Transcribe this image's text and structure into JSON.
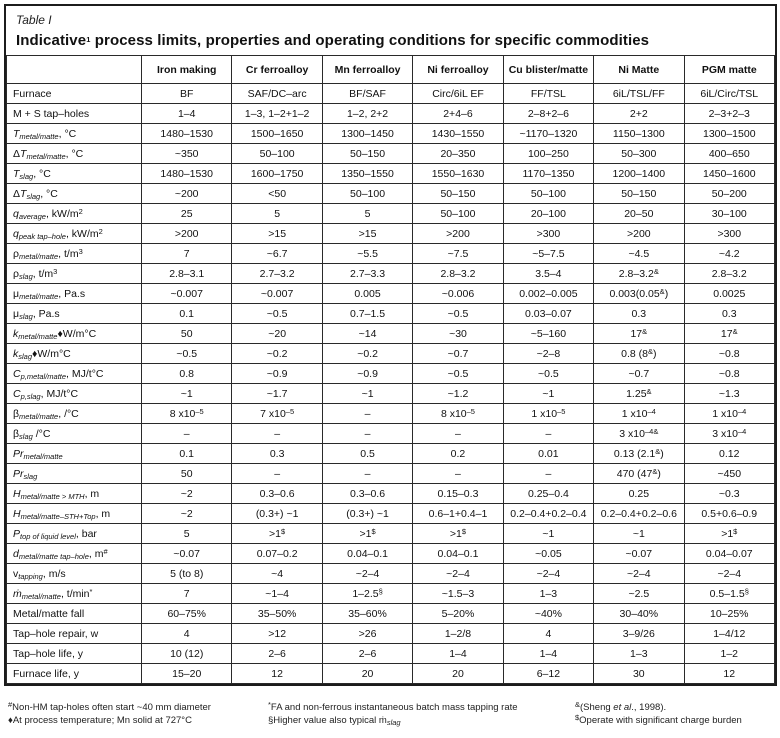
{
  "header": {
    "table_label": "Table I",
    "title_segments": [
      [
        "n",
        "Indicative"
      ],
      [
        "sup",
        "1"
      ],
      [
        "n",
        " process limits, properties and operating conditions for specific commodities"
      ]
    ]
  },
  "accent_colors": {
    "text": "#111111",
    "rule": "#2a2a2a",
    "background": "#ffffff"
  },
  "table": {
    "columns": [
      "",
      "Iron making",
      "Cr ferroalloy",
      "Mn ferroalloy",
      "Ni ferroalloy",
      "Cu blister/matte",
      "Ni Matte",
      "PGM matte"
    ],
    "rows": [
      {
        "label": [
          [
            "n",
            "Furnace"
          ]
        ],
        "values": [
          "BF",
          "SAF/DC–arc",
          "BF/SAF",
          "Circ/6iL EF",
          "FF/TSL",
          "6iL/TSL/FF",
          "6iL/Circ/TSL"
        ]
      },
      {
        "label": [
          [
            "n",
            "M + S tap–holes"
          ]
        ],
        "values": [
          "1–4",
          "1–3, 1–2+1–2",
          "1–2, 2+2",
          "2+4–6",
          "2–8+2–6",
          "2+2",
          "2–3+2–3"
        ]
      },
      {
        "label": [
          [
            "i",
            "T"
          ],
          [
            "sub",
            "metal/matte"
          ],
          [
            "n",
            ", °C"
          ]
        ],
        "values": [
          "1480–1530",
          "1500–1650",
          "1300–1450",
          "1430–1550",
          "~1170–1320",
          "1150–1300",
          "1300–1500"
        ]
      },
      {
        "label": [
          [
            "n",
            "Δ"
          ],
          [
            "i",
            "T"
          ],
          [
            "sub",
            "metal/matte"
          ],
          [
            "n",
            ", °C"
          ]
        ],
        "values": [
          "~350",
          "50–100",
          "50–150",
          "20–350",
          "100–250",
          "50–300",
          "400–650"
        ]
      },
      {
        "label": [
          [
            "i",
            "T"
          ],
          [
            "sub",
            "slag"
          ],
          [
            "n",
            ", °C"
          ]
        ],
        "values": [
          "1480–1530",
          "1600–1750",
          "1350–1550",
          "1550–1630",
          "1170–1350",
          "1200–1400",
          "1450–1600"
        ]
      },
      {
        "label": [
          [
            "n",
            "Δ"
          ],
          [
            "i",
            "T"
          ],
          [
            "sub",
            "slag"
          ],
          [
            "n",
            ", °C"
          ]
        ],
        "values": [
          "~200",
          "<50",
          "50–100",
          "50–150",
          "50–100",
          "50–150",
          "50–200"
        ]
      },
      {
        "label": [
          [
            "i",
            "q"
          ],
          [
            "sub",
            "average"
          ],
          [
            "n",
            ", kW/m"
          ],
          [
            "sup",
            "2"
          ]
        ],
        "values": [
          "25",
          "5",
          "5",
          "50–100",
          "20–100",
          "20–50",
          "30–100"
        ]
      },
      {
        "label": [
          [
            "i",
            "q"
          ],
          [
            "sub",
            "peak tap–hole"
          ],
          [
            "n",
            ", kW/m"
          ],
          [
            "sup",
            "2"
          ]
        ],
        "values": [
          ">200",
          ">15",
          ">15",
          ">200",
          ">300",
          ">200",
          ">300"
        ]
      },
      {
        "label": [
          [
            "n",
            "ρ"
          ],
          [
            "sub",
            "metal/matte"
          ],
          [
            "n",
            ", t/m"
          ],
          [
            "sup",
            "3"
          ]
        ],
        "values": [
          "7",
          "~6.7",
          "~5.5",
          "~7.5",
          "~5–7.5",
          "~4.5",
          "~4.2"
        ]
      },
      {
        "label": [
          [
            "n",
            "ρ"
          ],
          [
            "sub",
            "slag"
          ],
          [
            "n",
            ", t/m"
          ],
          [
            "sup",
            "3"
          ]
        ],
        "values": [
          "2.8–3.1",
          "2.7–3.2",
          "2.7–3.3",
          "2.8–3.2",
          "3.5–4",
          "2.8–3.2^&^",
          "2.8–3.2"
        ]
      },
      {
        "label": [
          [
            "n",
            "μ"
          ],
          [
            "sub",
            "metal/matte"
          ],
          [
            "n",
            ", Pa.s"
          ]
        ],
        "values": [
          "~0.007",
          "~0.007",
          "0.005",
          "~0.006",
          "0.002–0.005",
          "0.003(0.05^&^)",
          "0.0025"
        ]
      },
      {
        "label": [
          [
            "n",
            "μ"
          ],
          [
            "sub",
            "slag"
          ],
          [
            "n",
            ", Pa.s"
          ]
        ],
        "values": [
          "0.1",
          "~0.5",
          "0.7–1.5",
          "~0.5",
          "0.03–0.07",
          "0.3",
          "0.3"
        ]
      },
      {
        "label": [
          [
            "i",
            "k"
          ],
          [
            "sub",
            "metal/matte"
          ],
          [
            "n",
            "♦W/m°C"
          ]
        ],
        "values": [
          "50",
          "~20",
          "~14",
          "~30",
          "~5–160",
          "17^&^",
          "17^&^"
        ]
      },
      {
        "label": [
          [
            "i",
            "k"
          ],
          [
            "sub",
            "slag"
          ],
          [
            "n",
            "♦W/m°C"
          ]
        ],
        "values": [
          "~0.5",
          "~0.2",
          "~0.2",
          "~0.7",
          "~2–8",
          "0.8 (8^&^)",
          "~0.8"
        ]
      },
      {
        "label": [
          [
            "i",
            "C"
          ],
          [
            "sub",
            "p,metal/matte"
          ],
          [
            "n",
            ", MJ/t°C"
          ]
        ],
        "values": [
          "0.8",
          "~0.9",
          "~0.9",
          "~0.5",
          "~0.5",
          "~0.7",
          "~0.8"
        ]
      },
      {
        "label": [
          [
            "i",
            "C"
          ],
          [
            "sub",
            "p,slag"
          ],
          [
            "n",
            ", MJ/t°C"
          ]
        ],
        "values": [
          "~1",
          "~1.7",
          "~1",
          "~1.2",
          "~1",
          "1.25^&^",
          "~1.3"
        ]
      },
      {
        "label": [
          [
            "n",
            "β"
          ],
          [
            "sub",
            "metal/matte"
          ],
          [
            "n",
            ", /°C"
          ]
        ],
        "values": [
          "8 x10^–5^",
          "7 x10^–5^",
          "–",
          "8 x10^–5^",
          "1 x10^–5^",
          "1 x10^–4^",
          "1 x10^–4^"
        ]
      },
      {
        "label": [
          [
            "n",
            "β"
          ],
          [
            "sub",
            "slag"
          ],
          [
            "n",
            " /°C"
          ]
        ],
        "values": [
          "–",
          "–",
          "–",
          "–",
          "–",
          "3 x10^–4&^",
          "3 x10^–4^"
        ]
      },
      {
        "label": [
          [
            "i",
            "Pr"
          ],
          [
            "sub",
            "metal/matte"
          ]
        ],
        "values": [
          "0.1",
          "0.3",
          "0.5",
          "0.2",
          "0.01",
          "0.13 (2.1^&^)",
          "0.12"
        ]
      },
      {
        "label": [
          [
            "i",
            "Pr"
          ],
          [
            "sub",
            "slag"
          ]
        ],
        "values": [
          "50",
          "–",
          "–",
          "–",
          "–",
          "470 (47^&^)",
          "~450"
        ]
      },
      {
        "label": [
          [
            "i",
            "H"
          ],
          [
            "sub",
            "metal/matte > MTH"
          ],
          [
            "n",
            ", m"
          ]
        ],
        "values": [
          "~2",
          "0.3–0.6",
          "0.3–0.6",
          "0.15–0.3",
          "0.25–0.4",
          "0.25",
          "~0.3"
        ]
      },
      {
        "label": [
          [
            "i",
            "H"
          ],
          [
            "sub",
            "metal/matte–STH+Top"
          ],
          [
            "n",
            ", m"
          ]
        ],
        "values": [
          "~2",
          "(0.3+) ~1",
          "(0.3+) ~1",
          "0.6–1+0.4–1",
          "0.2–0.4+0.2–0.4",
          "0.2–0.4+0.2–0.6",
          "0.5+0.6–0.9"
        ]
      },
      {
        "label": [
          [
            "i",
            "P"
          ],
          [
            "sub",
            "top of liquid level"
          ],
          [
            "n",
            ", bar"
          ]
        ],
        "values": [
          "5",
          ">1^$^",
          ">1^$^",
          ">1^$^",
          "~1",
          "~1",
          ">1^$^"
        ]
      },
      {
        "label": [
          [
            "i",
            "d"
          ],
          [
            "sub",
            "metal/matte tap–hole"
          ],
          [
            "n",
            ", m"
          ],
          [
            "sup",
            "#"
          ]
        ],
        "values": [
          "~0.07",
          "0.07–0.2",
          "0.04–0.1",
          "0.04–0.1",
          "~0.05",
          "~0.07",
          "0.04–0.07"
        ]
      },
      {
        "label": [
          [
            "n",
            "v"
          ],
          [
            "sub",
            "tapping"
          ],
          [
            "n",
            ", m/s"
          ]
        ],
        "values": [
          "5 (to 8)",
          "~4",
          "~2–4",
          "~2–4",
          "~2–4",
          "~2–4",
          "~2–4"
        ]
      },
      {
        "label": [
          [
            "i",
            "ṁ"
          ],
          [
            "sub",
            "metal/matte"
          ],
          [
            "n",
            ", t/min"
          ],
          [
            "sup",
            "*"
          ]
        ],
        "values": [
          "7",
          "~1–4",
          "1–2.5^§^",
          "~1.5–3",
          "1–3",
          "~2.5",
          "0.5–1.5^§^"
        ]
      },
      {
        "label": [
          [
            "n",
            "Metal/matte fall"
          ]
        ],
        "values": [
          "60–75%",
          "35–50%",
          "35–60%",
          "5–20%",
          "~40%",
          "30–40%",
          "10–25%"
        ]
      },
      {
        "label": [
          [
            "n",
            "Tap–hole repair, w"
          ]
        ],
        "values": [
          "4",
          ">12",
          ">26",
          "1–2/8",
          "4",
          "3–9/26",
          "1–4/12"
        ]
      },
      {
        "label": [
          [
            "n",
            "Tap–hole life, y"
          ]
        ],
        "values": [
          "10 (12)",
          "2–6",
          "2–6",
          "1–4",
          "1–4",
          "1–3",
          "1–2"
        ]
      },
      {
        "label": [
          [
            "n",
            "Furnace life, y"
          ]
        ],
        "values": [
          "15–20",
          "12",
          "20",
          "20",
          "6–12",
          "30",
          "12"
        ]
      }
    ]
  },
  "footnotes": [
    {
      "lines": [
        [
          [
            "sup",
            "#"
          ],
          [
            "n",
            "Non-HM tap-holes often start ~40 mm diameter"
          ]
        ],
        [
          [
            "n",
            "♦At process temperature; Mn solid at 727°C"
          ]
        ]
      ]
    },
    {
      "lines": [
        [
          [
            "sup",
            "*"
          ],
          [
            "n",
            "FA and non-ferrous instantaneous batch mass tapping rate"
          ]
        ],
        [
          [
            "n",
            "§Higher value also typical ṁ"
          ],
          [
            "sub",
            "slag"
          ]
        ]
      ]
    },
    {
      "lines": [
        [
          [
            "sup",
            "&"
          ],
          [
            "n",
            "(Sheng "
          ],
          [
            "i",
            "et al"
          ],
          [
            "n",
            "., 1998)."
          ]
        ],
        [
          [
            "sup",
            "$"
          ],
          [
            "n",
            "Operate with significant charge burden"
          ]
        ]
      ]
    }
  ]
}
